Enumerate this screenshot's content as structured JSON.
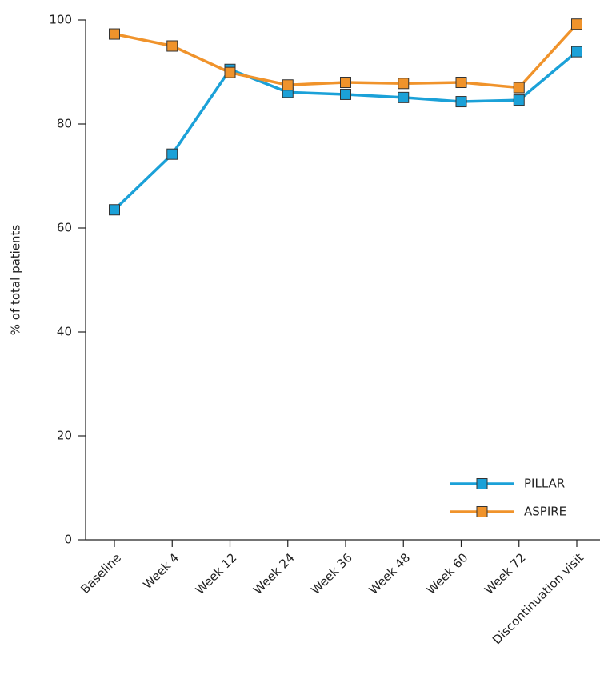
{
  "chart_data": {
    "type": "line",
    "y_label": "% of total patients",
    "categories": [
      "Baseline",
      "Week 4",
      "Week 12",
      "Week 24",
      "Week 36",
      "Week 48",
      "Week 60",
      "Week 72",
      "Discontinuation visit"
    ],
    "series": [
      {
        "name": "PILLAR",
        "color": "#1ba1d8",
        "values": [
          63.5,
          74.2,
          90.5,
          86.1,
          85.7,
          85.1,
          84.3,
          84.6,
          93.9
        ]
      },
      {
        "name": "ASPIRE",
        "color": "#f0932b",
        "values": [
          97.3,
          95.0,
          89.9,
          87.5,
          88.0,
          87.8,
          88.0,
          87.0,
          99.2
        ]
      }
    ],
    "ylim": [
      0,
      100
    ],
    "yticks": [
      0,
      20,
      40,
      60,
      80,
      100
    ],
    "legend": "lower right"
  }
}
